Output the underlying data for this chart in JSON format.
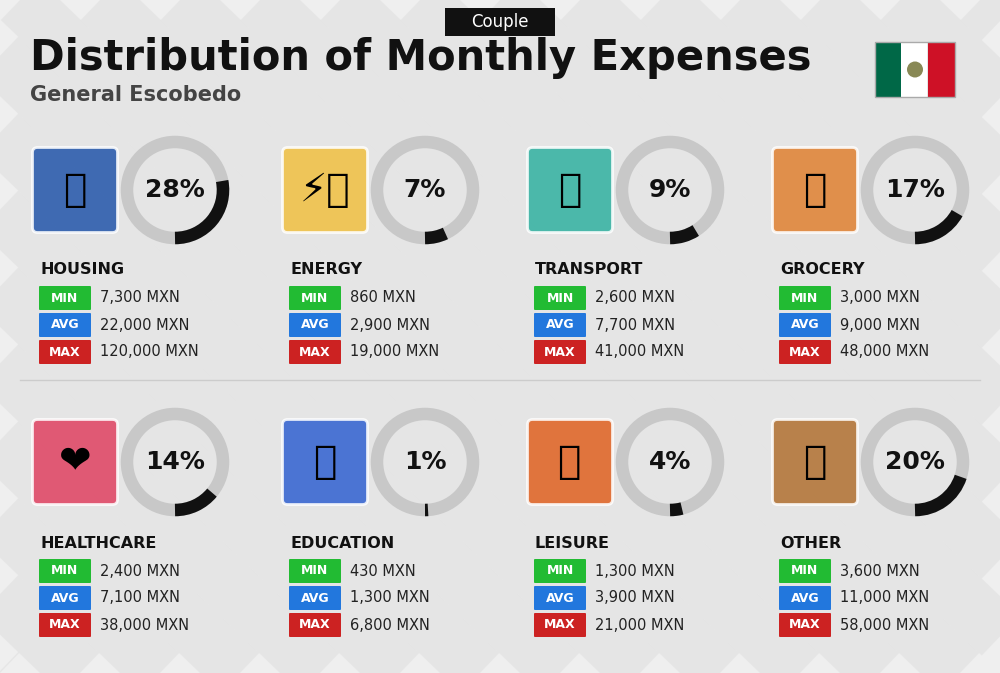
{
  "title": "Distribution of Monthly Expenses",
  "subtitle": "General Escobedo",
  "badge": "Couple",
  "bg_color": "#efefef",
  "categories": [
    {
      "name": "HOUSING",
      "pct": 28,
      "min": "7,300 MXN",
      "avg": "22,000 MXN",
      "max": "120,000 MXN",
      "icon_color": "#2255aa",
      "row": 0,
      "col": 0
    },
    {
      "name": "ENERGY",
      "pct": 7,
      "min": "860 MXN",
      "avg": "2,900 MXN",
      "max": "19,000 MXN",
      "icon_color": "#f0c040",
      "row": 0,
      "col": 1
    },
    {
      "name": "TRANSPORT",
      "pct": 9,
      "min": "2,600 MXN",
      "avg": "7,700 MXN",
      "max": "41,000 MXN",
      "icon_color": "#30b0a0",
      "row": 0,
      "col": 2
    },
    {
      "name": "GROCERY",
      "pct": 17,
      "min": "3,000 MXN",
      "avg": "9,000 MXN",
      "max": "48,000 MXN",
      "icon_color": "#e08030",
      "row": 0,
      "col": 3
    },
    {
      "name": "HEALTHCARE",
      "pct": 14,
      "min": "2,400 MXN",
      "avg": "7,100 MXN",
      "max": "38,000 MXN",
      "icon_color": "#e04060",
      "row": 1,
      "col": 0
    },
    {
      "name": "EDUCATION",
      "pct": 1,
      "min": "430 MXN",
      "avg": "1,300 MXN",
      "max": "6,800 MXN",
      "icon_color": "#3060d0",
      "row": 1,
      "col": 1
    },
    {
      "name": "LEISURE",
      "pct": 4,
      "min": "1,300 MXN",
      "avg": "3,900 MXN",
      "max": "21,000 MXN",
      "icon_color": "#e06020",
      "row": 1,
      "col": 2
    },
    {
      "name": "OTHER",
      "pct": 20,
      "min": "3,600 MXN",
      "avg": "11,000 MXN",
      "max": "58,000 MXN",
      "icon_color": "#b07030",
      "row": 1,
      "col": 3
    }
  ],
  "min_color": "#22bb33",
  "avg_color": "#2277dd",
  "max_color": "#cc2222",
  "donut_fg": "#111111",
  "donut_bg": "#c8c8c8",
  "stripe_color": "#dddddd",
  "title_fontsize": 30,
  "subtitle_fontsize": 15,
  "badge_fontsize": 12,
  "cat_fontsize": 11.5,
  "val_fontsize": 10.5,
  "pct_fontsize": 18
}
